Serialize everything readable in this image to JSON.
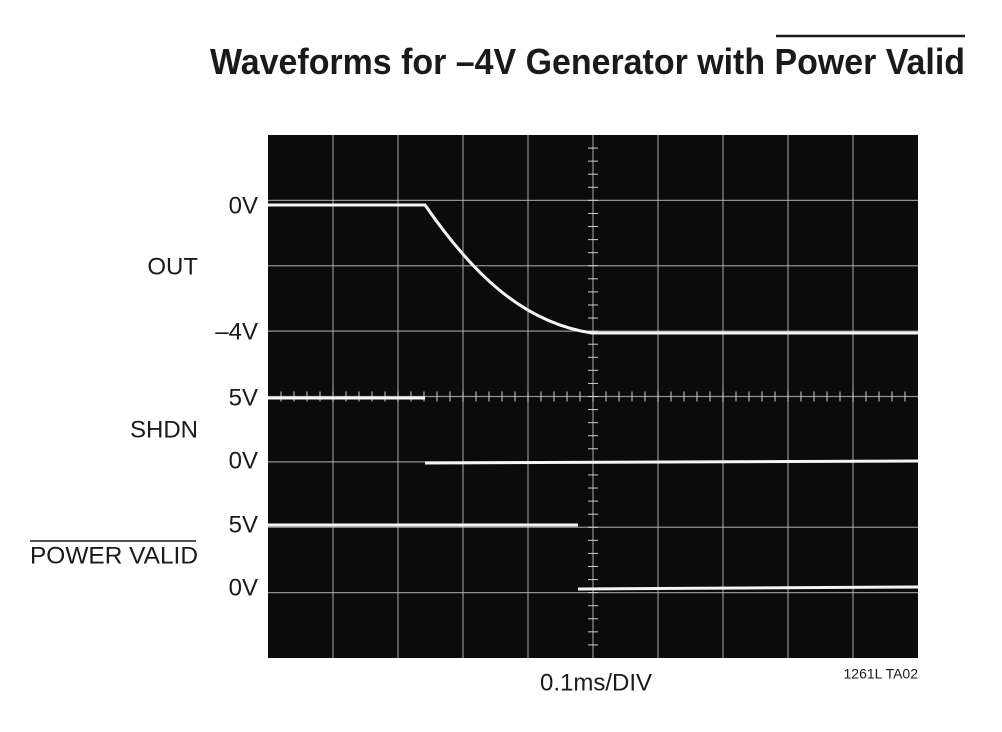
{
  "title": {
    "main": "Waveforms for –4V Generator with ",
    "overlined": "Power Valid"
  },
  "traces": [
    {
      "name": "OUT",
      "top_label": "0V",
      "bottom_label": "–4V"
    },
    {
      "name": "SHDN",
      "top_label": "5V",
      "bottom_label": "0V"
    },
    {
      "name": "POWER VALID",
      "top_label": "5V",
      "bottom_label": "0V"
    }
  ],
  "x_scale": "0.1ms/DIV",
  "figure_id": "1261L TA02"
}
